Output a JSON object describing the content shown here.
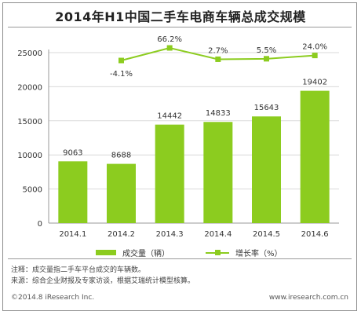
{
  "title": "2014年H1中国二手车电商车辆总成交规模",
  "colors": {
    "bar": "#8ccc1f",
    "line": "#8ccc1f",
    "grid": "#d9d9d9",
    "axis": "#9a9a9a"
  },
  "legend": {
    "bar_label": "成交量（辆）",
    "line_label": "增长率（%）"
  },
  "notes": {
    "note_line": "注释：成交量指二手车平台成交的车辆数。",
    "source_line": "来源：综合企业财报及专家访谈，根据艾瑞统计模型核算。"
  },
  "footer": {
    "copyright": "©2014.8 iResearch Inc.",
    "website": "www.iresearch.com.cn"
  },
  "chart_data": {
    "type": "bar",
    "categories": [
      "2014.1",
      "2014.2",
      "2014.3",
      "2014.4",
      "2014.5",
      "2014.6"
    ],
    "series": [
      {
        "name": "成交量（辆）",
        "type": "bar",
        "values": [
          9063,
          8688,
          14442,
          14833,
          15643,
          19402
        ],
        "labels": [
          "9063",
          "8688",
          "14442",
          "14833",
          "15643",
          "19402"
        ]
      },
      {
        "name": "增长率（%）",
        "type": "line",
        "values": [
          null,
          -4.1,
          66.2,
          2.7,
          5.5,
          24.0
        ],
        "labels": [
          "",
          "-4.1%",
          "66.2%",
          "2.7%",
          "5.5%",
          "24.0%"
        ]
      }
    ],
    "ylim": [
      0,
      25000
    ],
    "yticks": [
      0,
      5000,
      10000,
      15000,
      20000,
      25000
    ],
    "ytick_labels": [
      "0",
      "5000",
      "10000",
      "15000",
      "20000",
      "25000"
    ],
    "xlabel": "",
    "ylabel": "",
    "grid": true,
    "legend_position": "bottom"
  }
}
